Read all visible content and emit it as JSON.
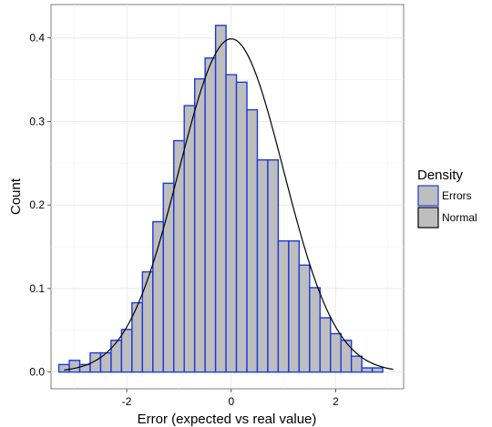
{
  "chart_data": {
    "type": "bar",
    "xlabel": "Error (expected vs real value)",
    "ylabel": "Count",
    "xlim": [
      -3.45,
      3.3
    ],
    "ylim": [
      -0.02,
      0.44
    ],
    "x_ticks": [
      -2,
      0,
      2
    ],
    "x_tick_labels": [
      "-2",
      "0",
      "2"
    ],
    "y_ticks": [
      0.0,
      0.1,
      0.2,
      0.3,
      0.4
    ],
    "y_tick_labels": [
      "0.0",
      "0.1",
      "0.2",
      "0.3",
      "0.4"
    ],
    "grid": true,
    "legend": {
      "title": "Density",
      "placement": "right",
      "entries": [
        {
          "label": "Errors",
          "fill": "#bebebe",
          "stroke": "#1a3adb"
        },
        {
          "label": "Normal",
          "fill": "#bebebe",
          "stroke": "#000000"
        }
      ]
    },
    "histogram": {
      "bin_width": 0.2,
      "bin_start": -3.3,
      "values": [
        0.009,
        0.014,
        0.009,
        0.023,
        0.023,
        0.038,
        0.051,
        0.083,
        0.12,
        0.18,
        0.226,
        0.277,
        0.319,
        0.351,
        0.376,
        0.415,
        0.356,
        0.347,
        0.314,
        0.254,
        0.254,
        0.157,
        0.157,
        0.128,
        0.101,
        0.065,
        0.046,
        0.038,
        0.019,
        0.005,
        0.005
      ],
      "fill": "#bebebe",
      "stroke": "#1a3adb"
    },
    "normal_curve": {
      "mean": 0,
      "sd": 1,
      "x_range": [
        -3.2,
        3.1
      ],
      "stroke": "#000000"
    }
  }
}
